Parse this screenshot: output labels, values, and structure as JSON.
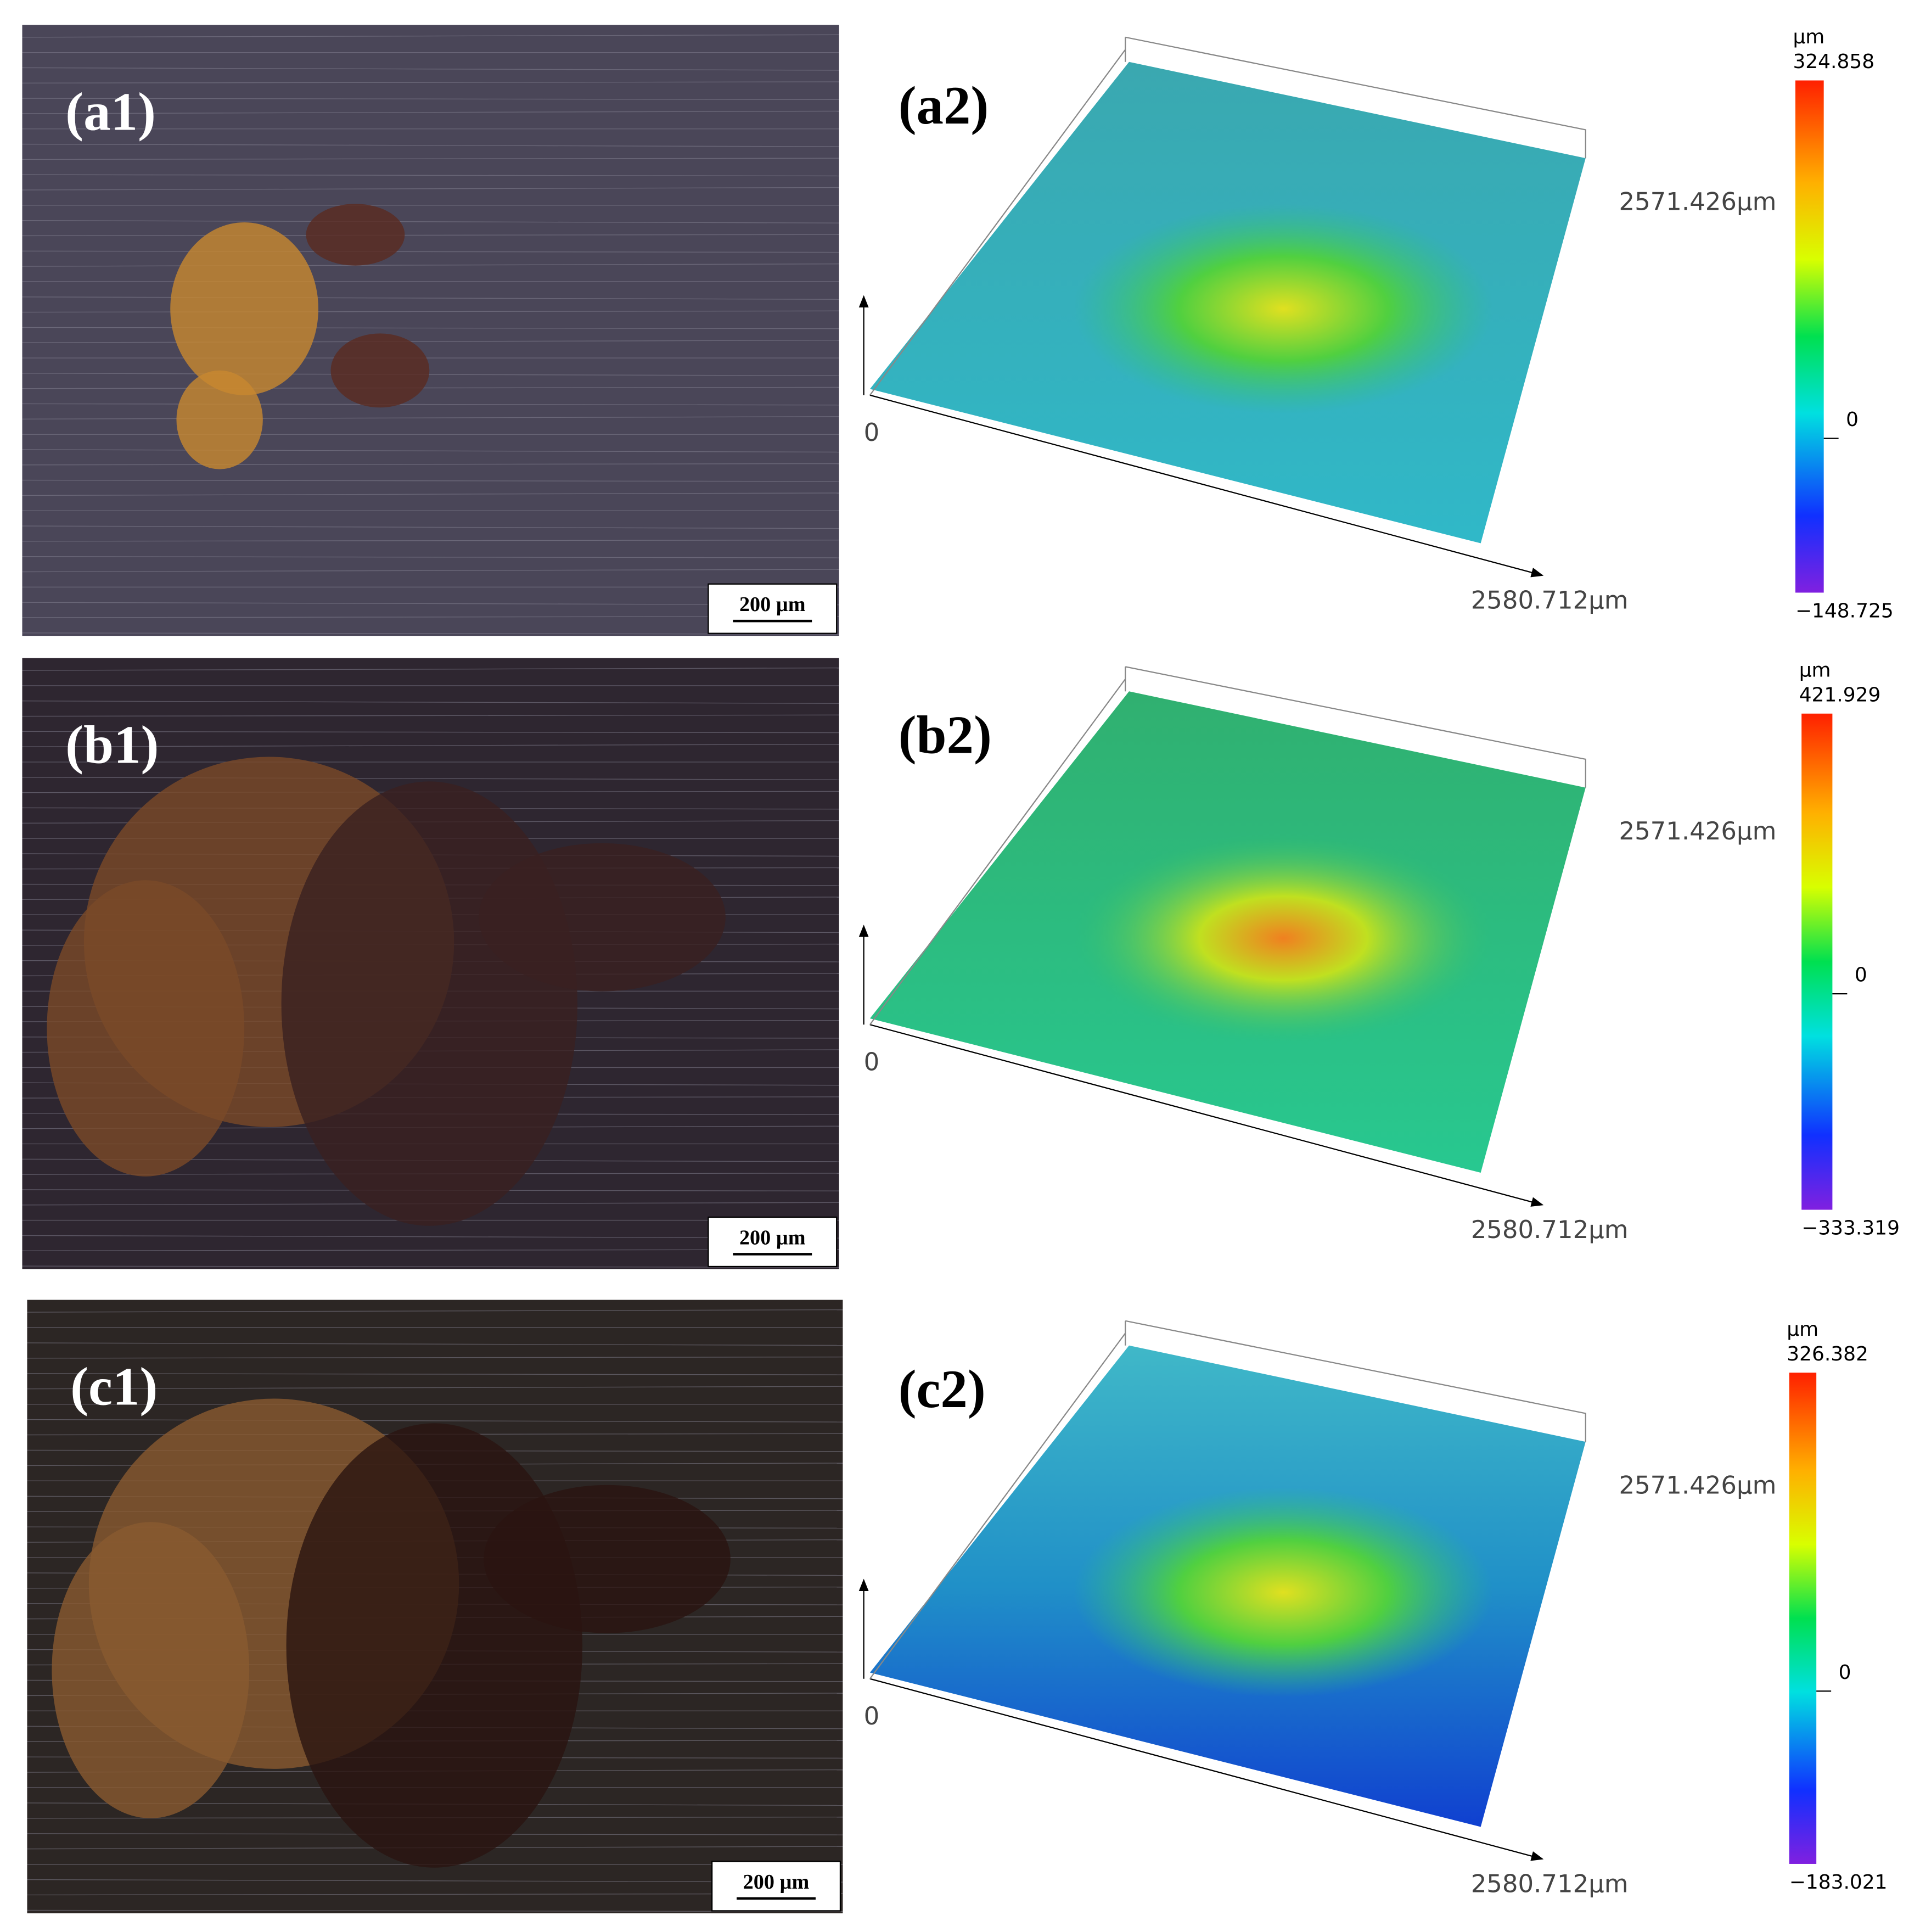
{
  "rows": [
    {
      "micrograph": {
        "label": "(a1)",
        "scale_bar": "200 µm"
      },
      "profile": {
        "label": "(a2)",
        "origin": "0",
        "y_extent": "2571.426µm",
        "x_extent": "2580.712µm",
        "colorbar": {
          "unit": "µm",
          "max": "324.858",
          "zero": "0",
          "min": "−148.725"
        }
      }
    },
    {
      "micrograph": {
        "label": "(b1)",
        "scale_bar": "200 µm"
      },
      "profile": {
        "label": "(b2)",
        "origin": "0",
        "y_extent": "2571.426µm",
        "x_extent": "2580.712µm",
        "colorbar": {
          "unit": "µm",
          "max": "421.929",
          "zero": "0",
          "min": "−333.319"
        }
      }
    },
    {
      "micrograph": {
        "label": "(c1)",
        "scale_bar": "200 µm"
      },
      "profile": {
        "label": "(c2)",
        "origin": "0",
        "y_extent": "2571.426µm",
        "x_extent": "2580.712µm",
        "colorbar": {
          "unit": "µm",
          "max": "326.382",
          "zero": "0",
          "min": "−183.021"
        }
      }
    }
  ]
}
